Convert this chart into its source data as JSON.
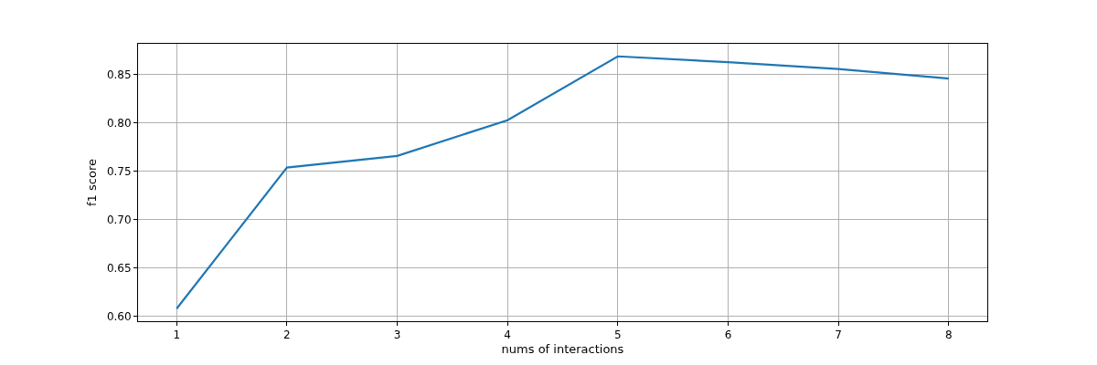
{
  "chart_data": {
    "type": "line",
    "xlabel": "nums of interactions",
    "ylabel": "f1 score",
    "x": [
      1,
      2,
      3,
      4,
      5,
      6,
      7,
      8
    ],
    "series": [
      {
        "color": "#1f77b4",
        "values": [
          0.608,
          0.754,
          0.766,
          0.803,
          0.869,
          0.863,
          0.856,
          0.846
        ]
      }
    ],
    "xlim": [
      0.65,
      8.35
    ],
    "xticks": [
      1,
      2,
      3,
      4,
      5,
      6,
      7,
      8
    ],
    "ylim": [
      0.595,
      0.882
    ],
    "yticks": [
      {
        "value": 0.6,
        "label": "0.60"
      },
      0.65,
      {
        "value": 0.7,
        "label": "0.70"
      },
      0.75,
      {
        "value": 0.8,
        "label": "0.80"
      },
      0.85
    ],
    "grid": true,
    "marker": "none",
    "line_style": "solid"
  }
}
